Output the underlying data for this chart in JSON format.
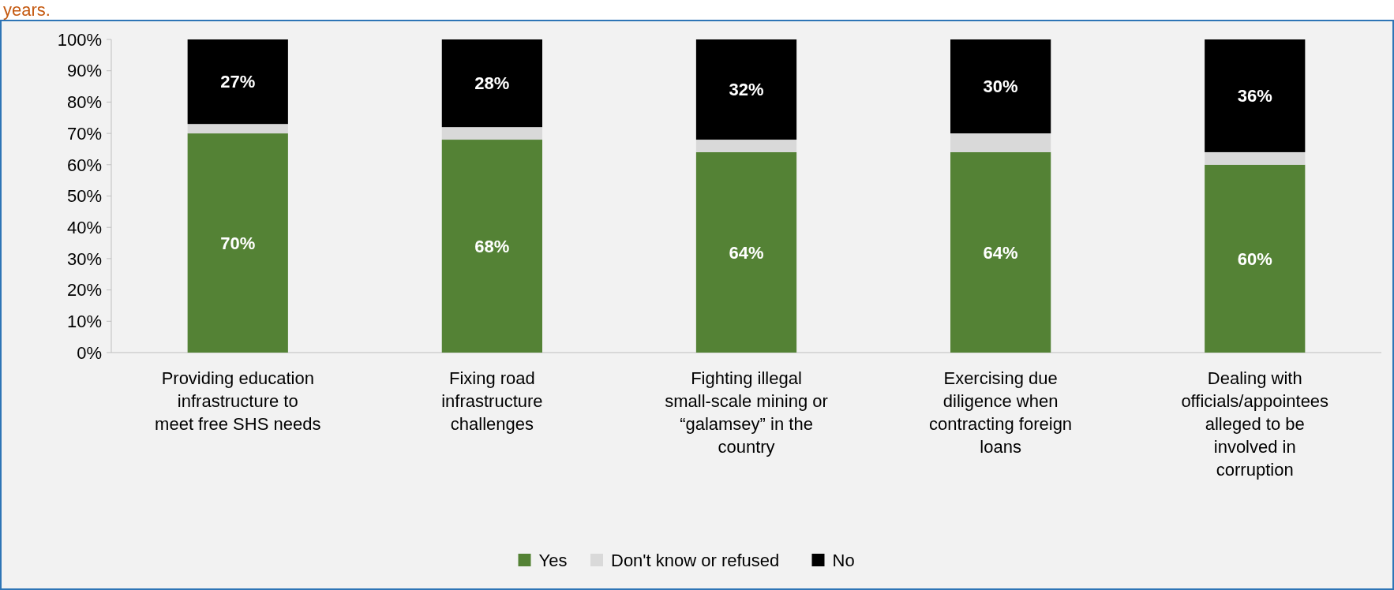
{
  "chart_data": {
    "type": "bar",
    "title": "years.",
    "stacked": true,
    "categories": [
      "Providing education infrastructure to meet free SHS needs",
      "Fixing road infrastructure challenges",
      "Fighting illegal small-scale mining or “galamsey” in the country",
      "Exercising due diligence when contracting foreign loans",
      "Dealing with officials/appointees alleged to be involved in corruption"
    ],
    "series": [
      {
        "name": "Yes",
        "color": "#548235",
        "values": [
          70,
          68,
          64,
          64,
          60
        ],
        "value_labels": [
          "70%",
          "68%",
          "64%",
          "64%",
          "60%"
        ]
      },
      {
        "name": "Don't know or refused",
        "color": "#d9d9d9",
        "values": [
          3,
          4,
          4,
          6,
          4
        ],
        "value_labels": [
          null,
          null,
          null,
          null,
          null
        ]
      },
      {
        "name": "No",
        "color": "#000000",
        "values": [
          27,
          28,
          32,
          30,
          36
        ],
        "value_labels": [
          "27%",
          "28%",
          "32%",
          "30%",
          "36%"
        ]
      }
    ],
    "ylim": [
      0,
      100
    ],
    "yticks": [
      {
        "value": 0,
        "label": "0%"
      },
      {
        "value": 10,
        "label": "10%"
      },
      {
        "value": 20,
        "label": "20%"
      },
      {
        "value": 30,
        "label": "30%"
      },
      {
        "value": 40,
        "label": "40%"
      },
      {
        "value": 50,
        "label": "50%"
      },
      {
        "value": 60,
        "label": "60%"
      },
      {
        "value": 70,
        "label": "70%"
      },
      {
        "value": 80,
        "label": "80%"
      },
      {
        "value": 90,
        "label": "90%"
      },
      {
        "value": 100,
        "label": "100%"
      }
    ],
    "legend": "bottom",
    "grid": false
  }
}
